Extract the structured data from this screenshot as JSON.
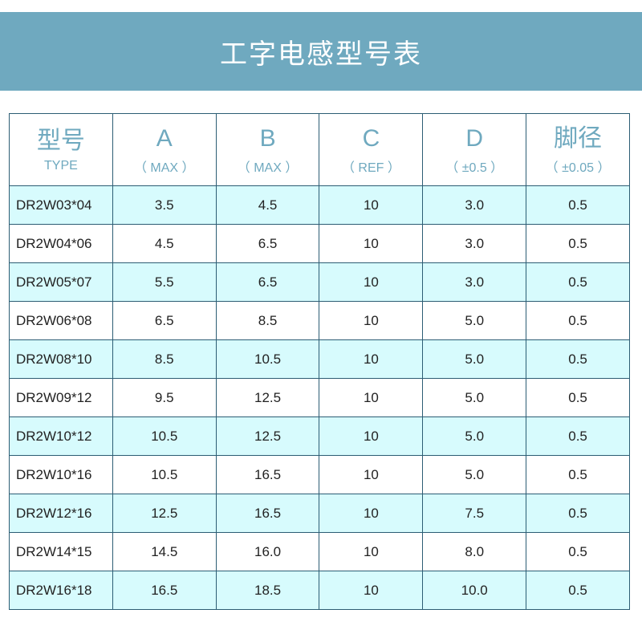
{
  "title": "工字电感型号表",
  "headers": [
    {
      "main": "型号",
      "sub": "TYPE"
    },
    {
      "main": "A",
      "sub": "（ MAX ）"
    },
    {
      "main": "B",
      "sub": "（ MAX ）"
    },
    {
      "main": "C",
      "sub": "（ REF ）"
    },
    {
      "main": "D",
      "sub": "（ ±0.5 ）"
    },
    {
      "main": "脚径",
      "sub": "（ ±0.05 ）"
    }
  ],
  "rows": [
    [
      "DR2W03*04",
      "3.5",
      "4.5",
      "10",
      "3.0",
      "0.5"
    ],
    [
      "DR2W04*06",
      "4.5",
      "6.5",
      "10",
      "3.0",
      "0.5"
    ],
    [
      "DR2W05*07",
      "5.5",
      "6.5",
      "10",
      "3.0",
      "0.5"
    ],
    [
      "DR2W06*08",
      "6.5",
      "8.5",
      "10",
      "5.0",
      "0.5"
    ],
    [
      "DR2W08*10",
      "8.5",
      "10.5",
      "10",
      "5.0",
      "0.5"
    ],
    [
      "DR2W09*12",
      "9.5",
      "12.5",
      "10",
      "5.0",
      "0.5"
    ],
    [
      "DR2W10*12",
      "10.5",
      "12.5",
      "10",
      "5.0",
      "0.5"
    ],
    [
      "DR2W10*16",
      "10.5",
      "16.5",
      "10",
      "5.0",
      "0.5"
    ],
    [
      "DR2W12*16",
      "12.5",
      "16.5",
      "10",
      "7.5",
      "0.5"
    ],
    [
      "DR2W14*15",
      "14.5",
      "16.0",
      "10",
      "8.0",
      "0.5"
    ],
    [
      "DR2W16*18",
      "16.5",
      "18.5",
      "10",
      "10.0",
      "0.5"
    ]
  ],
  "colors": {
    "banner": "#6fa9bf",
    "stripe": "#d7fbfd",
    "border": "#2c5d74"
  }
}
